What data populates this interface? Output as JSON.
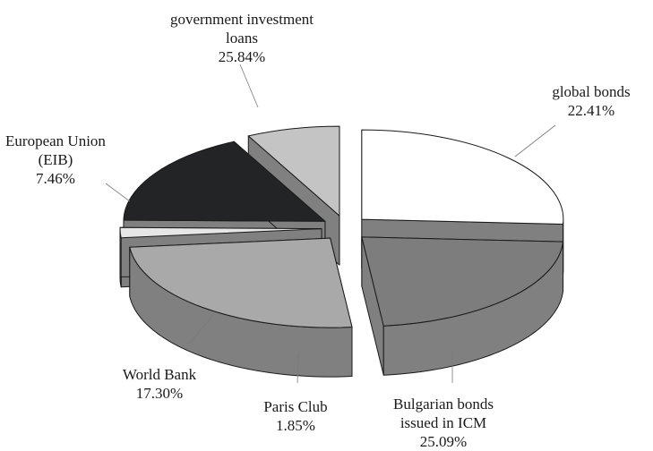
{
  "chart_data": {
    "type": "pie",
    "style": "3d-exploded",
    "title": "",
    "slices": [
      {
        "label_lines": [
          "government investment",
          "loans"
        ],
        "percent_text": "25.84%",
        "value": 25.84,
        "color": "#ffffff"
      },
      {
        "label_lines": [
          "global bonds"
        ],
        "percent_text": "22.41%",
        "value": 22.41,
        "color": "#7d7d7d"
      },
      {
        "label_lines": [
          "Bulgarian bonds",
          "issued in ICM"
        ],
        "percent_text": "25.09%",
        "value": 25.09,
        "color": "#a9a9a9"
      },
      {
        "label_lines": [
          "Paris Club"
        ],
        "percent_text": "1.85%",
        "value": 1.85,
        "color": "#e6e6e6"
      },
      {
        "label_lines": [
          "World Bank"
        ],
        "percent_text": "17.30%",
        "value": 17.3,
        "color": "#222426"
      },
      {
        "label_lines": [
          "European Union",
          "(EIB)"
        ],
        "percent_text": "7.46%",
        "value": 7.46,
        "color": "#c4c4c4"
      }
    ],
    "side_color": "#808080"
  }
}
